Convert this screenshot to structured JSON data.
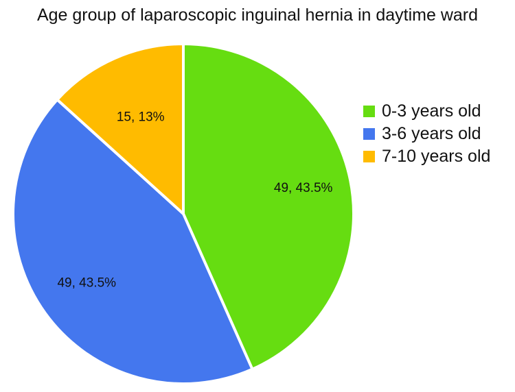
{
  "chart_data": {
    "type": "pie",
    "title": "Age group of laparoscopic inguinal hernia in daytime ward",
    "categories": [
      "0-3 years old",
      "3-6 years old",
      "7-10 years old"
    ],
    "values": [
      49,
      49,
      15
    ],
    "percentages": [
      "43.5%",
      "43.5%",
      "13%"
    ],
    "data_labels": [
      "49, 43.5%",
      "49, 43.5%",
      "15, 13%"
    ],
    "colors": [
      "#66dd11",
      "#4477ee",
      "#ffbb00"
    ],
    "start": "12 o'clock",
    "direction": "clockwise",
    "legend_position": "right"
  }
}
